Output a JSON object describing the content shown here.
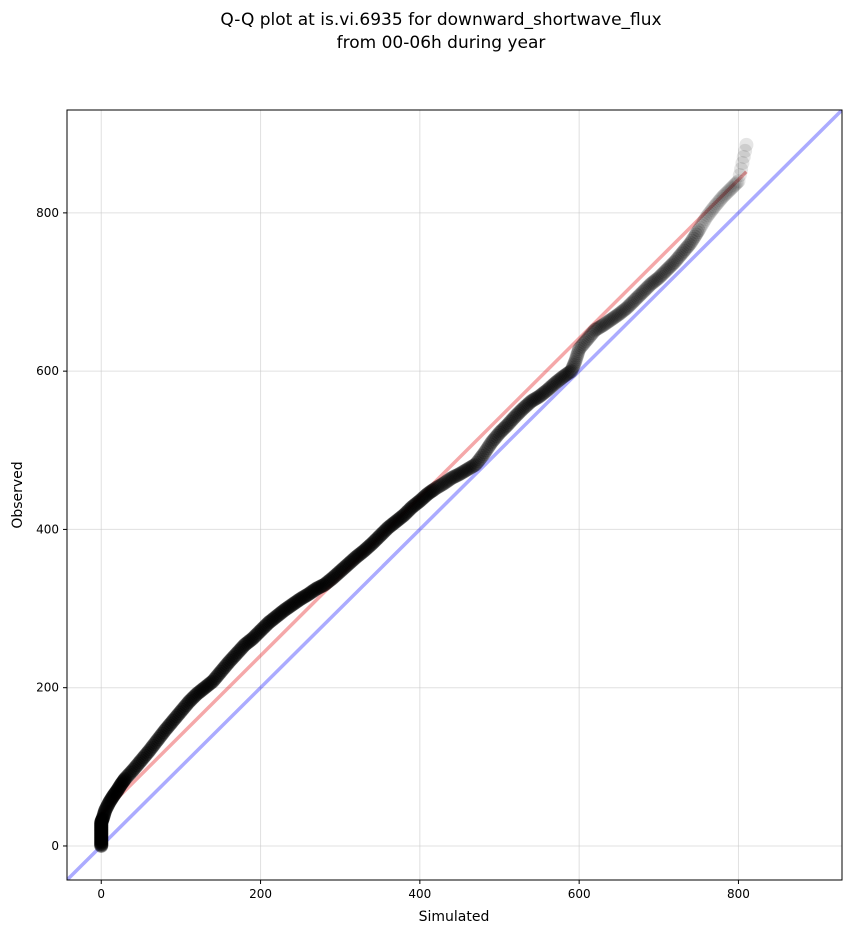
{
  "chart_data": {
    "type": "scatter",
    "title_line1": "Q-Q plot at is.vi.6935 for downward_shortwave_flux",
    "title_line2": "from 00-06h during year",
    "xlabel": "Simulated",
    "ylabel": "Observed",
    "xlim": [
      -43,
      930
    ],
    "ylim": [
      -43,
      930
    ],
    "xticks": [
      0,
      200,
      400,
      600,
      800
    ],
    "yticks": [
      0,
      200,
      400,
      600,
      800
    ],
    "grid": true,
    "colors": {
      "points": "#000000",
      "identity_line": "#0000ff",
      "fit_line": "#e41a1c",
      "grid": "#cccccc"
    },
    "identity_line": {
      "x": [
        -43,
        930
      ],
      "y": [
        -43,
        930
      ]
    },
    "fit_line": {
      "x": [
        0,
        810
      ],
      "y": [
        40,
        852
      ]
    },
    "quantiles": [
      [
        0,
        0
      ],
      [
        0,
        5
      ],
      [
        0,
        10
      ],
      [
        0,
        15
      ],
      [
        0,
        20
      ],
      [
        0,
        25
      ],
      [
        0,
        30
      ],
      [
        2,
        35
      ],
      [
        5,
        45
      ],
      [
        10,
        55
      ],
      [
        15,
        63
      ],
      [
        20,
        70
      ],
      [
        25,
        78
      ],
      [
        30,
        85
      ],
      [
        40,
        96
      ],
      [
        50,
        108
      ],
      [
        60,
        120
      ],
      [
        70,
        133
      ],
      [
        80,
        146
      ],
      [
        90,
        158
      ],
      [
        100,
        170
      ],
      [
        110,
        182
      ],
      [
        120,
        192
      ],
      [
        130,
        200
      ],
      [
        140,
        208
      ],
      [
        150,
        220
      ],
      [
        160,
        232
      ],
      [
        170,
        243
      ],
      [
        180,
        254
      ],
      [
        190,
        262
      ],
      [
        200,
        272
      ],
      [
        210,
        282
      ],
      [
        220,
        290
      ],
      [
        230,
        298
      ],
      [
        240,
        305
      ],
      [
        250,
        312
      ],
      [
        260,
        318
      ],
      [
        270,
        325
      ],
      [
        280,
        330
      ],
      [
        290,
        338
      ],
      [
        300,
        347
      ],
      [
        310,
        356
      ],
      [
        320,
        365
      ],
      [
        330,
        373
      ],
      [
        340,
        382
      ],
      [
        350,
        392
      ],
      [
        360,
        402
      ],
      [
        370,
        410
      ],
      [
        380,
        418
      ],
      [
        390,
        428
      ],
      [
        400,
        436
      ],
      [
        410,
        445
      ],
      [
        420,
        452
      ],
      [
        430,
        458
      ],
      [
        440,
        465
      ],
      [
        450,
        470
      ],
      [
        460,
        476
      ],
      [
        470,
        482
      ],
      [
        480,
        495
      ],
      [
        490,
        510
      ],
      [
        500,
        522
      ],
      [
        510,
        532
      ],
      [
        520,
        543
      ],
      [
        530,
        553
      ],
      [
        540,
        562
      ],
      [
        550,
        568
      ],
      [
        560,
        576
      ],
      [
        570,
        585
      ],
      [
        580,
        593
      ],
      [
        590,
        600
      ],
      [
        595,
        612
      ],
      [
        600,
        628
      ],
      [
        610,
        640
      ],
      [
        620,
        652
      ],
      [
        630,
        658
      ],
      [
        640,
        665
      ],
      [
        650,
        672
      ],
      [
        660,
        680
      ],
      [
        670,
        690
      ],
      [
        680,
        700
      ],
      [
        690,
        710
      ],
      [
        700,
        718
      ],
      [
        710,
        728
      ],
      [
        720,
        738
      ],
      [
        730,
        750
      ],
      [
        740,
        762
      ],
      [
        750,
        778
      ],
      [
        760,
        795
      ],
      [
        770,
        808
      ],
      [
        780,
        820
      ],
      [
        790,
        830
      ],
      [
        800,
        840
      ],
      [
        810,
        886
      ]
    ]
  }
}
